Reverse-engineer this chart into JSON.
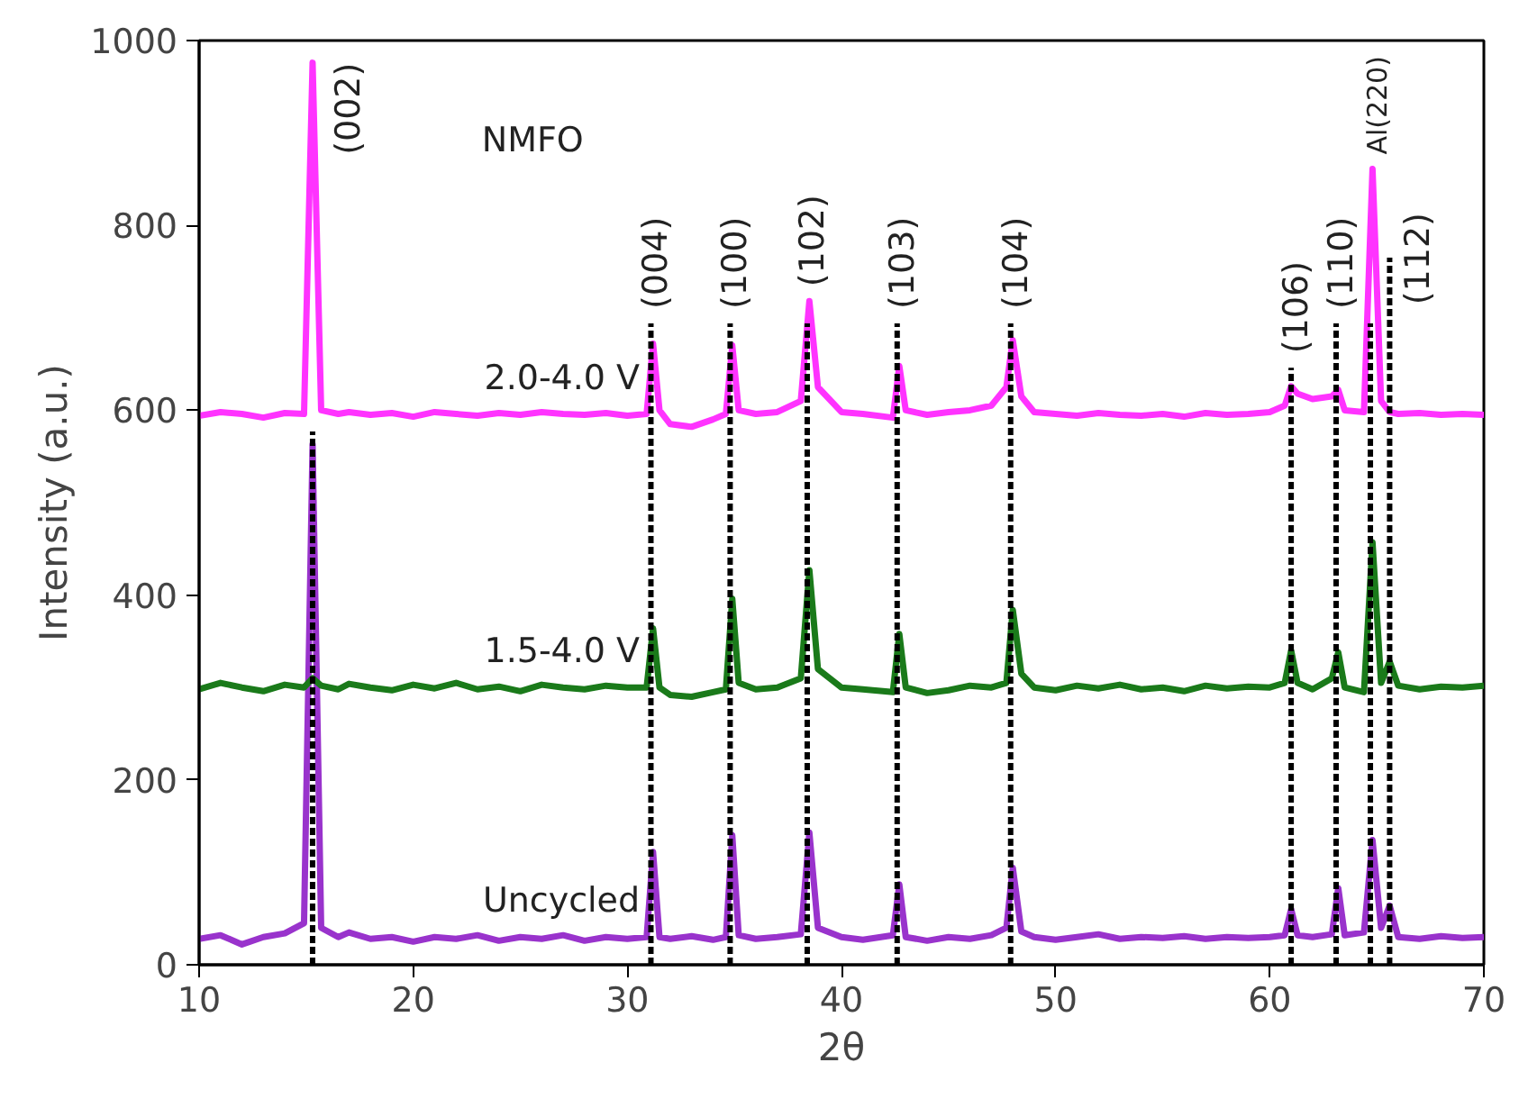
{
  "chart_data": {
    "type": "line",
    "xlabel": "2θ",
    "ylabel": "Intensity (a.u.)",
    "xlim": [
      10,
      70
    ],
    "ylim": [
      0,
      1000
    ],
    "xticks": [
      10,
      20,
      30,
      40,
      50,
      60,
      70
    ],
    "yticks": [
      0,
      200,
      400,
      600,
      800,
      1000
    ],
    "grid": false,
    "marker": "none",
    "annotations": [
      "NMFO",
      {
        "text": "(002)",
        "x": 15.3,
        "y": 976
      },
      {
        "text": "(004)",
        "x": 31.1,
        "y": 694
      },
      {
        "text": "(100)",
        "x": 34.8,
        "y": 694
      },
      {
        "text": "(102)",
        "x": 38.4,
        "y": 694
      },
      {
        "text": "(103)",
        "x": 42.6,
        "y": 694
      },
      {
        "text": "(104)",
        "x": 47.9,
        "y": 694
      },
      {
        "text": "(106)",
        "x": 61.0,
        "y": 646
      },
      {
        "text": "(110)",
        "x": 63.1,
        "y": 694
      },
      {
        "text": "Al(220)",
        "x": 64.8,
        "y": 861
      },
      {
        "text": "(112)",
        "x": 65.6,
        "y": 765
      }
    ],
    "series": [
      {
        "type": "line",
        "line_style": "dashed",
        "color": "#000000",
        "x": [
          15.3,
          15.3
        ],
        "values": [
          0,
          577
        ]
      },
      {
        "type": "line",
        "line_style": "dashed",
        "color": "#000000",
        "x": [
          31.1,
          31.1
        ],
        "values": [
          0,
          694
        ]
      },
      {
        "type": "line",
        "line_style": "dashed",
        "color": "#000000",
        "x": [
          34.8,
          34.8
        ],
        "values": [
          0,
          694
        ]
      },
      {
        "type": "line",
        "line_style": "dashed",
        "color": "#000000",
        "x": [
          38.4,
          38.4
        ],
        "values": [
          0,
          694
        ]
      },
      {
        "type": "line",
        "line_style": "dashed",
        "color": "#000000",
        "x": [
          42.6,
          42.6
        ],
        "values": [
          0,
          694
        ]
      },
      {
        "type": "line",
        "line_style": "dashed",
        "color": "#000000",
        "x": [
          47.9,
          47.9
        ],
        "values": [
          0,
          694
        ]
      },
      {
        "type": "line",
        "line_style": "dashed",
        "color": "#000000",
        "x": [
          61.0,
          61.0
        ],
        "values": [
          0,
          646
        ]
      },
      {
        "type": "line",
        "line_style": "dashed",
        "color": "#000000",
        "x": [
          63.1,
          63.1
        ],
        "values": [
          0,
          694
        ]
      },
      {
        "type": "line",
        "line_style": "dashed",
        "color": "#000000",
        "x": [
          64.7,
          64.7
        ],
        "values": [
          0,
          694
        ]
      },
      {
        "type": "line",
        "line_style": "dashed",
        "color": "#000000",
        "x": [
          65.6,
          65.6
        ],
        "values": [
          0,
          765
        ]
      },
      {
        "name": "Uncycled",
        "line_style": "solid",
        "color": "#9933cc",
        "x": [
          10,
          11,
          12,
          13,
          14,
          14.9,
          15.3,
          15.7,
          16.5,
          17,
          18,
          19,
          20,
          21,
          22,
          23,
          24,
          25,
          26,
          27,
          28,
          29,
          30,
          30.9,
          31.2,
          31.5,
          32,
          33,
          34,
          34.6,
          34.9,
          35.2,
          36,
          37,
          38.1,
          38.5,
          38.9,
          40,
          41,
          42.4,
          42.7,
          43,
          44,
          45,
          46,
          47,
          47.7,
          48.0,
          48.4,
          49,
          50,
          51,
          52,
          53,
          54,
          55,
          56,
          57,
          58,
          59,
          60,
          60.7,
          61.0,
          61.3,
          62,
          62.9,
          63.2,
          63.5,
          64.4,
          64.8,
          65.2,
          65.6,
          66,
          67,
          68,
          69,
          70
        ],
        "values": [
          28,
          32,
          22,
          30,
          34,
          45,
          563,
          40,
          30,
          35,
          28,
          30,
          25,
          30,
          28,
          32,
          26,
          30,
          28,
          32,
          26,
          30,
          28,
          30,
          122,
          30,
          28,
          31,
          27,
          30,
          140,
          32,
          28,
          30,
          33,
          143,
          40,
          30,
          27,
          32,
          87,
          30,
          26,
          30,
          28,
          32,
          40,
          105,
          36,
          30,
          27,
          30,
          33,
          28,
          30,
          29,
          31,
          28,
          30,
          29,
          30,
          32,
          60,
          32,
          30,
          33,
          83,
          32,
          35,
          135,
          40,
          64,
          30,
          28,
          31,
          29,
          30
        ]
      },
      {
        "name": "1.5-4.0 V",
        "line_style": "solid",
        "color": "#1a7a1a",
        "x": [
          10,
          11,
          12,
          13,
          14,
          14.9,
          15.3,
          15.7,
          16.5,
          17,
          18,
          19,
          20,
          21,
          22,
          23,
          24,
          25,
          26,
          27,
          28,
          29,
          30,
          30.9,
          31.2,
          31.5,
          32,
          33,
          34,
          34.6,
          34.9,
          35.2,
          36,
          37,
          38.1,
          38.5,
          38.9,
          40,
          41,
          42.4,
          42.7,
          43,
          44,
          45,
          46,
          47,
          47.7,
          48.0,
          48.4,
          49,
          50,
          51,
          52,
          53,
          54,
          55,
          56,
          57,
          58,
          59,
          60,
          60.7,
          61.0,
          61.3,
          62,
          62.9,
          63.2,
          63.5,
          64.4,
          64.8,
          65.2,
          65.6,
          66,
          67,
          68,
          69,
          70
        ],
        "values": [
          298,
          305,
          300,
          296,
          303,
          300,
          310,
          302,
          298,
          304,
          300,
          297,
          303,
          299,
          305,
          298,
          301,
          296,
          303,
          300,
          298,
          302,
          300,
          300,
          364,
          300,
          292,
          290,
          295,
          298,
          396,
          305,
          298,
          300,
          310,
          427,
          320,
          300,
          298,
          295,
          358,
          300,
          294,
          297,
          302,
          300,
          305,
          384,
          315,
          300,
          297,
          302,
          299,
          303,
          298,
          300,
          296,
          302,
          299,
          301,
          300,
          305,
          340,
          305,
          298,
          310,
          338,
          300,
          295,
          457,
          305,
          328,
          302,
          298,
          301,
          300,
          302
        ]
      },
      {
        "name": "2.0-4.0 V",
        "line_style": "solid",
        "color": "#ff33ff",
        "x": [
          10,
          11,
          12,
          13,
          14,
          14.9,
          15.3,
          15.7,
          16.5,
          17,
          18,
          19,
          20,
          21,
          22,
          23,
          24,
          25,
          26,
          27,
          28,
          29,
          30,
          30.9,
          31.2,
          31.5,
          32,
          33,
          34,
          34.6,
          34.9,
          35.2,
          36,
          37,
          38.1,
          38.5,
          38.9,
          40,
          41,
          42.4,
          42.7,
          43,
          44,
          45,
          46,
          47,
          47.7,
          48.0,
          48.4,
          49,
          50,
          51,
          52,
          53,
          54,
          55,
          56,
          57,
          58,
          59,
          60,
          60.7,
          61.0,
          61.3,
          62,
          62.9,
          63.2,
          63.5,
          64.4,
          64.8,
          65.2,
          65.6,
          66,
          67,
          68,
          69,
          70
        ],
        "values": [
          594,
          598,
          596,
          592,
          597,
          596,
          976,
          600,
          596,
          598,
          595,
          597,
          593,
          598,
          596,
          594,
          597,
          595,
          598,
          596,
          595,
          597,
          594,
          596,
          672,
          600,
          585,
          582,
          590,
          596,
          670,
          600,
          596,
          598,
          610,
          718,
          625,
          598,
          596,
          592,
          648,
          600,
          595,
          598,
          600,
          605,
          625,
          676,
          615,
          598,
          596,
          594,
          597,
          595,
          594,
          596,
          593,
          597,
          595,
          596,
          598,
          605,
          626,
          618,
          612,
          615,
          622,
          600,
          598,
          861,
          610,
          598,
          596,
          597,
          595,
          596,
          595
        ]
      }
    ]
  }
}
